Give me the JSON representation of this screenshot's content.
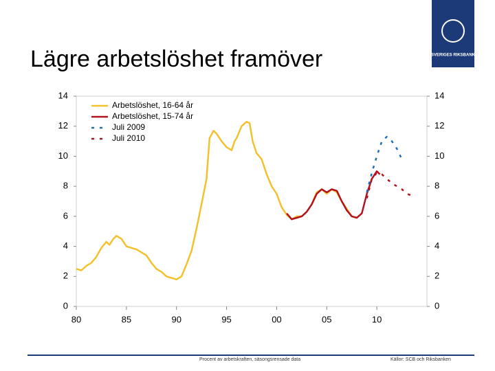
{
  "header": {
    "title": "Lägre arbetslöshet framöver",
    "logo_text": "SVERIGES RIKSBANK"
  },
  "chart_data": {
    "type": "line",
    "xlim": [
      1980,
      2015
    ],
    "xticks": [
      {
        "value": 1980,
        "label": "80"
      },
      {
        "value": 1985,
        "label": "85"
      },
      {
        "value": 1990,
        "label": "90"
      },
      {
        "value": 1995,
        "label": "95"
      },
      {
        "value": 2000,
        "label": "00"
      },
      {
        "value": 2005,
        "label": "05"
      },
      {
        "value": 2010,
        "label": "10"
      }
    ],
    "ylim": [
      0,
      14
    ],
    "yticks": [
      0,
      2,
      4,
      6,
      8,
      10,
      12,
      14
    ],
    "legend": "upper left",
    "series": [
      {
        "name": "Arbetslöshet, 16-64 år",
        "color": "#f2c12e",
        "style": "solid",
        "x": [
          1980,
          1980.5,
          1981,
          1981.5,
          1982,
          1982.5,
          1983,
          1983.3,
          1983.7,
          1984,
          1984.5,
          1985,
          1985.5,
          1986,
          1986.5,
          1987,
          1987.5,
          1988,
          1988.5,
          1989,
          1989.5,
          1990,
          1990.5,
          1991,
          1991.5,
          1992,
          1992.5,
          1993,
          1993.3,
          1993.7,
          1994,
          1994.5,
          1995,
          1995.5,
          1995.8,
          1996,
          1996.5,
          1997,
          1997.3,
          1997.6,
          1998,
          1998.5,
          1999,
          1999.5,
          2000,
          2000.5,
          2001,
          2001.5,
          2002,
          2002.5,
          2003,
          2003.5,
          2004,
          2004.5,
          2005,
          2005.5,
          2006,
          2006.5,
          2007,
          2007.5,
          2008,
          2008.5
        ],
        "values": [
          2.5,
          2.4,
          2.7,
          2.9,
          3.3,
          3.9,
          4.3,
          4.1,
          4.5,
          4.7,
          4.5,
          4.0,
          3.9,
          3.8,
          3.6,
          3.4,
          2.9,
          2.5,
          2.3,
          2.0,
          1.9,
          1.8,
          2.0,
          2.8,
          3.7,
          5.2,
          6.8,
          8.5,
          11.2,
          11.7,
          11.5,
          11.0,
          10.6,
          10.4,
          11.0,
          11.2,
          12.0,
          12.3,
          12.2,
          11.0,
          10.2,
          9.8,
          8.8,
          8.0,
          7.5,
          6.6,
          6.1,
          5.8,
          6.0,
          6.0,
          6.3,
          6.8,
          7.6,
          7.8,
          7.5,
          7.8,
          7.6,
          7.0,
          6.5,
          6.0,
          5.9,
          6.2
        ]
      },
      {
        "name": "Arbetslöshet, 15-74 år",
        "color": "#b3121f",
        "style": "solid",
        "x": [
          2001,
          2001.5,
          2002,
          2002.5,
          2003,
          2003.5,
          2004,
          2004.5,
          2005,
          2005.5,
          2006,
          2006.5,
          2007,
          2007.5,
          2008,
          2008.5,
          2009,
          2009.5,
          2010,
          2010.3
        ],
        "values": [
          6.2,
          5.8,
          5.9,
          6.0,
          6.3,
          6.8,
          7.5,
          7.8,
          7.6,
          7.8,
          7.7,
          7.0,
          6.4,
          6.0,
          5.9,
          6.2,
          7.5,
          8.5,
          9.0,
          8.8
        ]
      },
      {
        "name": "Juli 2009",
        "color": "#1f6fb5",
        "style": "dashed",
        "x": [
          2009,
          2009.5,
          2010,
          2010.5,
          2011,
          2011.5,
          2012,
          2012.5
        ],
        "values": [
          7.6,
          8.9,
          10.0,
          11.0,
          11.3,
          11.0,
          10.5,
          9.8
        ]
      },
      {
        "name": "Juli 2010",
        "color": "#b3121f",
        "style": "dashed",
        "x": [
          2009,
          2009.5,
          2010,
          2010.5,
          2011,
          2011.5,
          2012,
          2012.5,
          2013,
          2013.8
        ],
        "values": [
          7.2,
          8.5,
          8.9,
          8.8,
          8.5,
          8.2,
          8.0,
          7.8,
          7.5,
          7.3
        ]
      }
    ]
  },
  "footer": {
    "note": "Procent av arbetskraften, säsongsrensade data",
    "source": "Källor: SCB och Riksbanken"
  }
}
